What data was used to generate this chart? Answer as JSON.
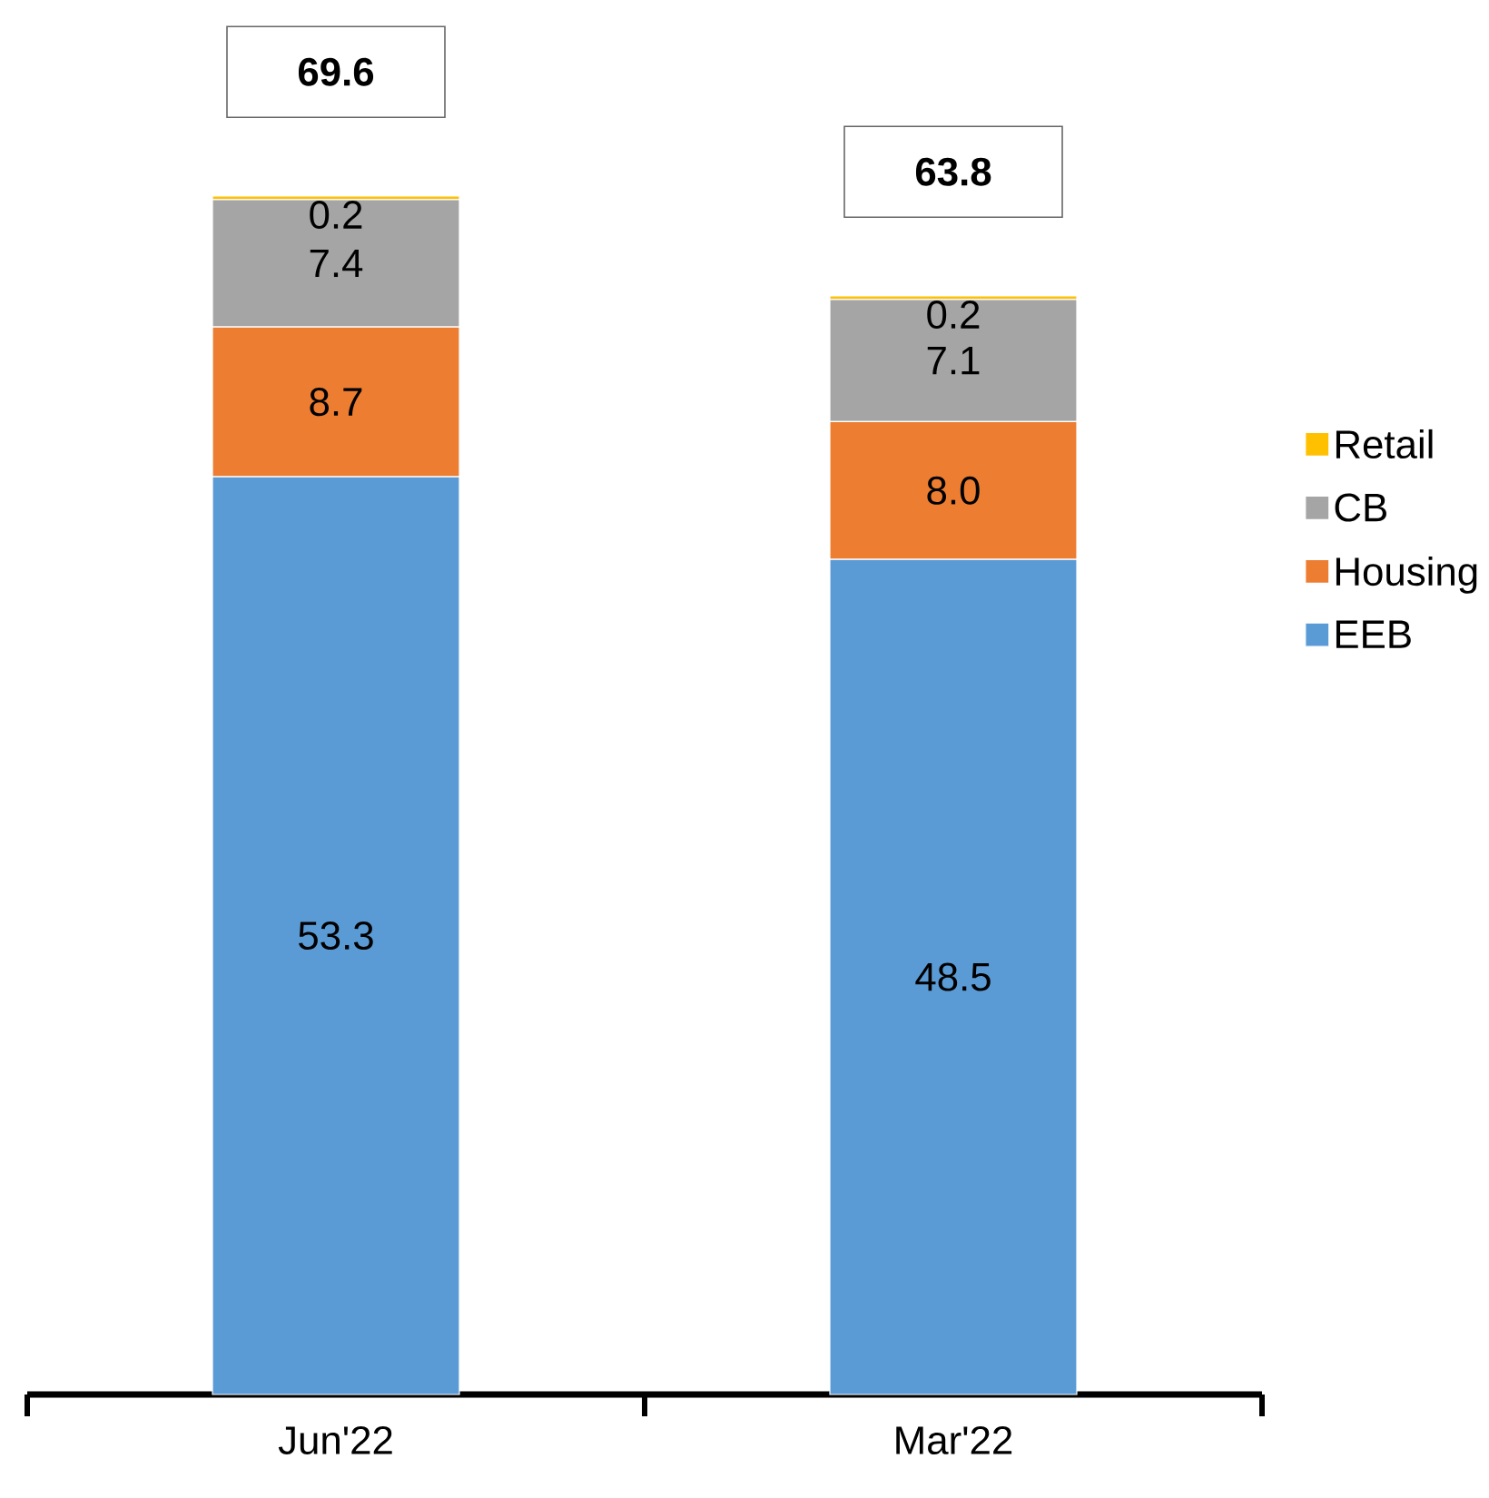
{
  "chart_data": {
    "type": "bar",
    "stacked": true,
    "legend": "right",
    "categories": [
      "Jun'22",
      "Mar'22"
    ],
    "series": [
      {
        "name": "EEB",
        "color": "#5b9bd5",
        "values": [
          53.3,
          48.5
        ],
        "value_labels": [
          "53.3",
          "48.5"
        ]
      },
      {
        "name": "Housing",
        "color": "#ed7d31",
        "values": [
          8.7,
          8.0
        ],
        "value_labels": [
          "8.7",
          "8.0"
        ]
      },
      {
        "name": "CB",
        "color": "#a5a5a5",
        "values": [
          7.4,
          7.1
        ],
        "value_labels": [
          "7.4",
          "7.1"
        ]
      },
      {
        "name": "Retail",
        "color": "#ffc000",
        "values": [
          0.2,
          0.2
        ],
        "value_labels": [
          "0.2",
          "0.2"
        ]
      }
    ],
    "totals": [
      "69.6",
      "63.8"
    ]
  }
}
